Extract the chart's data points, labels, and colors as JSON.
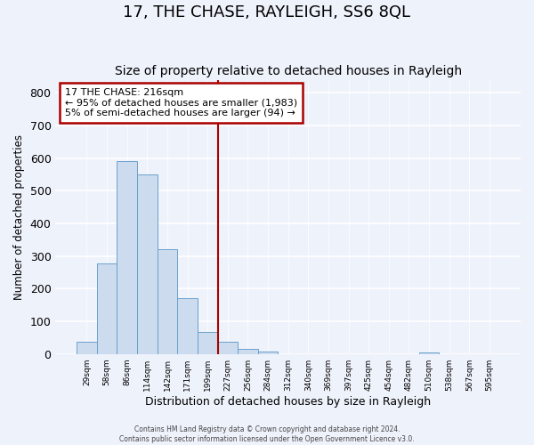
{
  "title": "17, THE CHASE, RAYLEIGH, SS6 8QL",
  "subtitle": "Size of property relative to detached houses in Rayleigh",
  "xlabel": "Distribution of detached houses by size in Rayleigh",
  "ylabel": "Number of detached properties",
  "bar_values": [
    38,
    278,
    590,
    550,
    320,
    170,
    68,
    38,
    15,
    8,
    0,
    0,
    0,
    0,
    0,
    0,
    0,
    5,
    0,
    0,
    0
  ],
  "bin_labels": [
    "29sqm",
    "58sqm",
    "86sqm",
    "114sqm",
    "142sqm",
    "171sqm",
    "199sqm",
    "227sqm",
    "256sqm",
    "284sqm",
    "312sqm",
    "340sqm",
    "369sqm",
    "397sqm",
    "425sqm",
    "454sqm",
    "482sqm",
    "510sqm",
    "538sqm",
    "567sqm",
    "595sqm"
  ],
  "bar_color": "#ccdcee",
  "bar_edge_color": "#6aa0cc",
  "vline_index": 7,
  "vline_color": "#aa0000",
  "annotation_title": "17 THE CHASE: 216sqm",
  "annotation_line1": "← 95% of detached houses are smaller (1,983)",
  "annotation_line2": "5% of semi-detached houses are larger (94) →",
  "annotation_box_color": "#ffffff",
  "annotation_box_edge": "#aa0000",
  "ylim": [
    0,
    840
  ],
  "yticks": [
    0,
    100,
    200,
    300,
    400,
    500,
    600,
    700,
    800
  ],
  "footer_line1": "Contains HM Land Registry data © Crown copyright and database right 2024.",
  "footer_line2": "Contains public sector information licensed under the Open Government Licence v3.0.",
  "background_color": "#eef2fb",
  "grid_color": "#ffffff",
  "title_fontsize": 13,
  "subtitle_fontsize": 10
}
